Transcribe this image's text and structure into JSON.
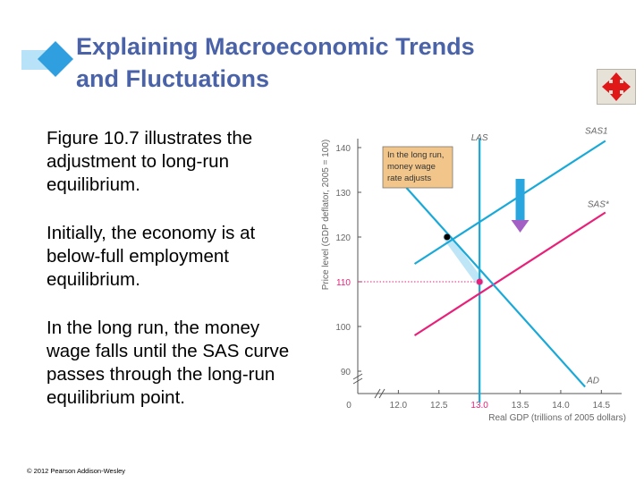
{
  "colors": {
    "title": "#4a63a8",
    "diamond": "#2f9fe0",
    "diamond_band": "#b8e2f7",
    "curve_blue": "#19a9d8",
    "curve_pink": "#e8207a",
    "arrow_fill": "#2aa6df",
    "arrow_head": "#a35fc4",
    "note_bg": "#f2c68a",
    "axis_label": "#666666"
  },
  "slide": {
    "title_line1": "Explaining Macroeconomic Trends",
    "title_line2": "and Fluctuations",
    "nav_icon": "four-way-arrow-icon",
    "paragraphs": [
      "Figure 10.7 illustrates the adjustment to long-run equilibrium.",
      "Initially, the economy is at below-full employment equilibrium.",
      "In the long run, the money wage falls until the SAS curve passes through the long-run equilibrium point."
    ],
    "copyright": "© 2012 Pearson Addison-Wesley"
  },
  "chart_data": {
    "type": "line",
    "ylabel": "Price level (GDP deflator, 2005 = 100)",
    "xlabel": "Real GDP (trillions of 2005 dollars)",
    "y_ticks": [
      "140",
      "130",
      "120",
      "110",
      "100",
      "90"
    ],
    "x_ticks": [
      "12.0",
      "12.5",
      "13.0",
      "13.5",
      "14.0",
      "14.5"
    ],
    "origin_label": "0",
    "xlim": [
      11.5,
      14.75
    ],
    "ylim": [
      85,
      143
    ],
    "highlighted_x_tick": "13.0",
    "highlighted_y_tick": "110",
    "series": [
      {
        "name": "LAS",
        "x": [
          13.0,
          13.0
        ],
        "y": [
          142,
          83
        ],
        "color": "#19a9d8"
      },
      {
        "name": "SAS1",
        "x": [
          12.2,
          14.55
        ],
        "y": [
          114,
          141.5
        ],
        "color": "#19a9d8"
      },
      {
        "name": "SAS*",
        "x": [
          12.2,
          14.55
        ],
        "y": [
          98,
          125.5
        ],
        "color": "#e8207a"
      },
      {
        "name": "AD",
        "x": [
          12.1,
          14.3
        ],
        "y": [
          131,
          86.5
        ],
        "color": "#19a9d8"
      }
    ],
    "points": [
      {
        "x": 12.6,
        "y": 120,
        "color": "#000000"
      },
      {
        "x": 13.0,
        "y": 110,
        "color": "#e8207a"
      }
    ],
    "annotation": {
      "lines": [
        "In the long run,",
        "money wage",
        "rate adjusts"
      ]
    },
    "arrow": {
      "x": 13.5,
      "y_from": 133,
      "y_to": 122
    }
  }
}
